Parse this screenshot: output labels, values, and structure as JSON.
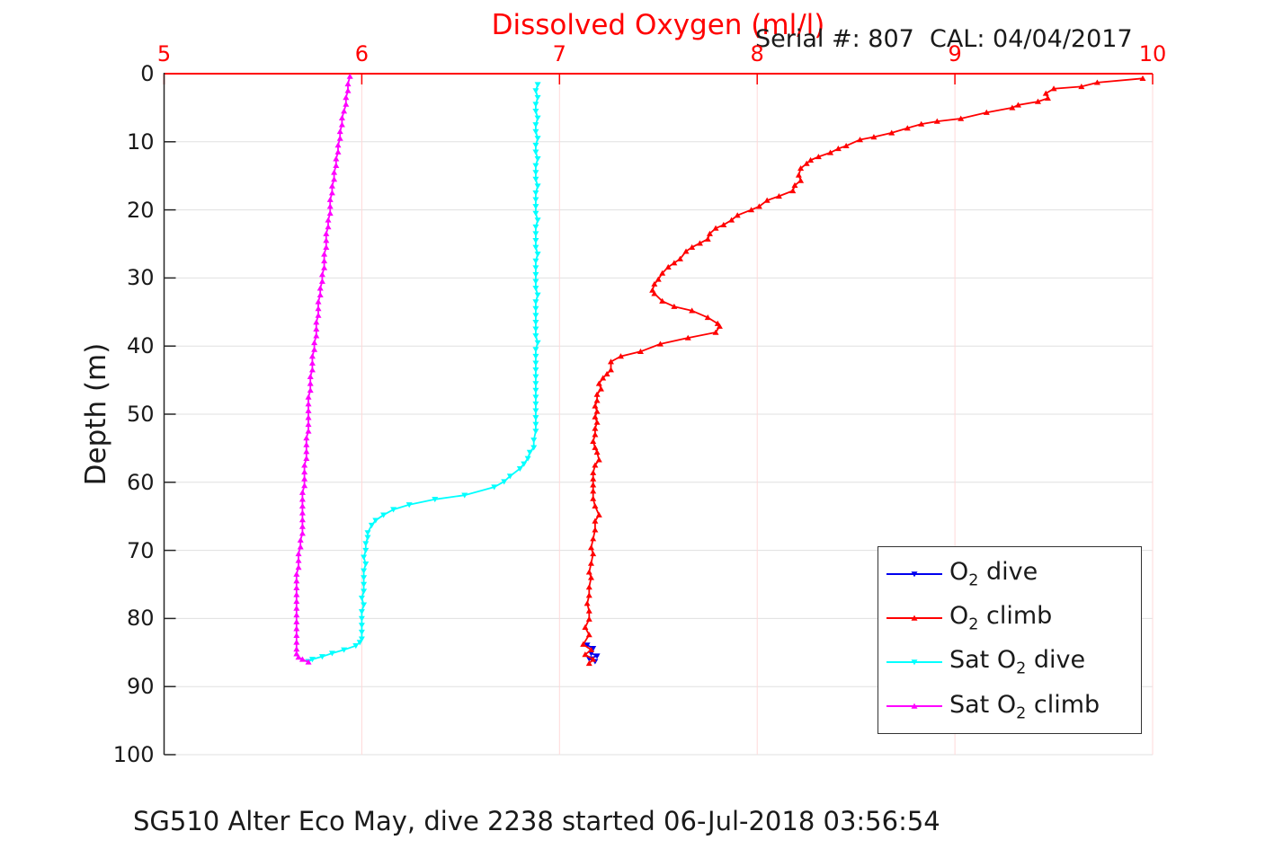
{
  "figure": {
    "title": "Dissolved Oxygen (ml/l)",
    "serial_cal": "Serial #: 807  CAL: 04/04/2017",
    "footer": "SG510 Alter Eco May, dive 2238 started 06-Jul-2018 03:56:54",
    "ylabel": "Depth (m)"
  },
  "colors": {
    "title": "#ff0000",
    "x_axis": "#ff0000",
    "x_tick_labels": "#ff0000",
    "y_axis": "#262626",
    "y_tick_labels": "#1a1a1a",
    "grid_horizontal": "#e0e0e0",
    "grid_vertical": "#ffd9d9",
    "o2_dive": "#0000ee",
    "o2_climb": "#ff0000",
    "sat_o2_dive": "#00ffff",
    "sat_o2_climb": "#ff00ff",
    "legend_border": "#333333"
  },
  "chart_data": {
    "type": "line",
    "title": "Dissolved Oxygen (ml/l)",
    "xlabel": "Dissolved Oxygen (ml/l)",
    "ylabel": "Depth (m)",
    "x_axis_position": "top",
    "y_axis_inverted": true,
    "xlim": [
      5,
      10
    ],
    "ylim": [
      0,
      100
    ],
    "x_ticks": [
      5,
      6,
      7,
      8,
      9,
      10
    ],
    "y_ticks": [
      0,
      10,
      20,
      30,
      40,
      50,
      60,
      70,
      80,
      90,
      100
    ],
    "grid": true,
    "legend_position": "middle-right",
    "point_format": "[dissolved_o2_ml_per_l, depth_m]",
    "series": [
      {
        "id": "o2-dive",
        "label": "O2 dive",
        "label_parts": {
          "pre": "O",
          "sub": "2",
          "post": " dive"
        },
        "color": "#0000ee",
        "marker": "triangle-down",
        "points": [
          [
            7.14,
            83.9
          ],
          [
            7.17,
            84.4
          ],
          [
            7.16,
            85.1
          ],
          [
            7.19,
            85.5
          ],
          [
            7.15,
            85.9
          ],
          [
            7.18,
            86.3
          ]
        ]
      },
      {
        "id": "o2-climb",
        "label": "O2 climb",
        "label_parts": {
          "pre": "O",
          "sub": "2",
          "post": " climb"
        },
        "color": "#ff0000",
        "marker": "triangle-up",
        "points": [
          [
            9.95,
            0.7
          ],
          [
            9.72,
            1.3
          ],
          [
            9.64,
            1.9
          ],
          [
            9.5,
            2.2
          ],
          [
            9.46,
            2.9
          ],
          [
            9.47,
            3.6
          ],
          [
            9.42,
            4.1
          ],
          [
            9.32,
            4.6
          ],
          [
            9.29,
            5.0
          ],
          [
            9.16,
            5.7
          ],
          [
            9.03,
            6.6
          ],
          [
            8.91,
            7.0
          ],
          [
            8.83,
            7.4
          ],
          [
            8.76,
            8.0
          ],
          [
            8.68,
            8.7
          ],
          [
            8.59,
            9.3
          ],
          [
            8.52,
            9.7
          ],
          [
            8.45,
            10.6
          ],
          [
            8.41,
            11.0
          ],
          [
            8.37,
            11.6
          ],
          [
            8.31,
            12.2
          ],
          [
            8.27,
            12.7
          ],
          [
            8.25,
            13.2
          ],
          [
            8.22,
            13.9
          ],
          [
            8.21,
            14.9
          ],
          [
            8.22,
            15.7
          ],
          [
            8.19,
            16.4
          ],
          [
            8.18,
            17.2
          ],
          [
            8.11,
            18.0
          ],
          [
            8.05,
            18.6
          ],
          [
            8.01,
            19.5
          ],
          [
            7.97,
            20.0
          ],
          [
            7.9,
            20.8
          ],
          [
            7.87,
            21.5
          ],
          [
            7.83,
            22.2
          ],
          [
            7.79,
            22.7
          ],
          [
            7.76,
            23.5
          ],
          [
            7.75,
            24.3
          ],
          [
            7.71,
            24.9
          ],
          [
            7.67,
            25.5
          ],
          [
            7.64,
            26.1
          ],
          [
            7.61,
            27.2
          ],
          [
            7.58,
            27.8
          ],
          [
            7.55,
            28.4
          ],
          [
            7.52,
            29.3
          ],
          [
            7.5,
            30.2
          ],
          [
            7.48,
            30.9
          ],
          [
            7.47,
            31.8
          ],
          [
            7.48,
            32.3
          ],
          [
            7.52,
            33.4
          ],
          [
            7.58,
            34.2
          ],
          [
            7.67,
            34.8
          ],
          [
            7.75,
            35.8
          ],
          [
            7.8,
            36.7
          ],
          [
            7.81,
            37.1
          ],
          [
            7.79,
            38.0
          ],
          [
            7.65,
            38.8
          ],
          [
            7.51,
            39.7
          ],
          [
            7.41,
            40.8
          ],
          [
            7.31,
            41.5
          ],
          [
            7.26,
            42.3
          ],
          [
            7.26,
            43.5
          ],
          [
            7.24,
            44.1
          ],
          [
            7.22,
            44.7
          ],
          [
            7.2,
            45.5
          ],
          [
            7.21,
            46.3
          ],
          [
            7.19,
            47.1
          ],
          [
            7.19,
            48.0
          ],
          [
            7.18,
            48.8
          ],
          [
            7.19,
            49.6
          ],
          [
            7.18,
            50.4
          ],
          [
            7.19,
            51.2
          ],
          [
            7.18,
            52.1
          ],
          [
            7.18,
            53.0
          ],
          [
            7.17,
            54.0
          ],
          [
            7.18,
            54.9
          ],
          [
            7.19,
            55.6
          ],
          [
            7.2,
            56.7
          ],
          [
            7.18,
            57.5
          ],
          [
            7.17,
            58.6
          ],
          [
            7.17,
            59.5
          ],
          [
            7.17,
            60.4
          ],
          [
            7.17,
            61.3
          ],
          [
            7.17,
            62.4
          ],
          [
            7.18,
            63.5
          ],
          [
            7.2,
            64.8
          ],
          [
            7.18,
            65.7
          ],
          [
            7.18,
            67.0
          ],
          [
            7.17,
            68.3
          ],
          [
            7.16,
            69.6
          ],
          [
            7.17,
            70.5
          ],
          [
            7.16,
            71.9
          ],
          [
            7.15,
            73.2
          ],
          [
            7.16,
            74.0
          ],
          [
            7.15,
            75.4
          ],
          [
            7.15,
            76.6
          ],
          [
            7.14,
            77.8
          ],
          [
            7.15,
            78.9
          ],
          [
            7.15,
            80.1
          ],
          [
            7.13,
            81.3
          ],
          [
            7.15,
            82.4
          ],
          [
            7.12,
            83.8
          ],
          [
            7.16,
            84.6
          ],
          [
            7.13,
            85.3
          ],
          [
            7.17,
            86.0
          ],
          [
            7.15,
            86.6
          ]
        ]
      },
      {
        "id": "sat-o2-dive",
        "label": "Sat O2 dive",
        "label_parts": {
          "pre": "Sat O",
          "sub": "2",
          "post": " dive"
        },
        "color": "#00ffff",
        "marker": "triangle-down",
        "points": [
          [
            6.89,
            1.6
          ],
          [
            6.88,
            2.5
          ],
          [
            6.89,
            3.5
          ],
          [
            6.88,
            4.5
          ],
          [
            6.88,
            5.5
          ],
          [
            6.89,
            6.5
          ],
          [
            6.88,
            7.5
          ],
          [
            6.88,
            8.5
          ],
          [
            6.89,
            9.5
          ],
          [
            6.88,
            10.5
          ],
          [
            6.88,
            11.5
          ],
          [
            6.89,
            12.5
          ],
          [
            6.88,
            13.5
          ],
          [
            6.88,
            14.5
          ],
          [
            6.88,
            15.5
          ],
          [
            6.89,
            16.5
          ],
          [
            6.88,
            17.5
          ],
          [
            6.88,
            18.5
          ],
          [
            6.88,
            19.5
          ],
          [
            6.88,
            20.5
          ],
          [
            6.89,
            21.5
          ],
          [
            6.88,
            22.5
          ],
          [
            6.88,
            23.5
          ],
          [
            6.88,
            24.5
          ],
          [
            6.88,
            25.5
          ],
          [
            6.89,
            26.5
          ],
          [
            6.88,
            27.5
          ],
          [
            6.88,
            28.5
          ],
          [
            6.88,
            29.5
          ],
          [
            6.88,
            30.5
          ],
          [
            6.88,
            31.5
          ],
          [
            6.89,
            32.5
          ],
          [
            6.88,
            33.5
          ],
          [
            6.88,
            34.5
          ],
          [
            6.88,
            35.5
          ],
          [
            6.88,
            36.5
          ],
          [
            6.88,
            37.5
          ],
          [
            6.88,
            38.5
          ],
          [
            6.89,
            39.5
          ],
          [
            6.88,
            40.5
          ],
          [
            6.88,
            41.5
          ],
          [
            6.88,
            42.5
          ],
          [
            6.88,
            43.5
          ],
          [
            6.88,
            44.5
          ],
          [
            6.88,
            45.5
          ],
          [
            6.88,
            46.5
          ],
          [
            6.88,
            47.5
          ],
          [
            6.88,
            48.5
          ],
          [
            6.88,
            49.5
          ],
          [
            6.88,
            50.5
          ],
          [
            6.88,
            51.5
          ],
          [
            6.88,
            52.5
          ],
          [
            6.87,
            53.8
          ],
          [
            6.87,
            54.9
          ],
          [
            6.85,
            55.6
          ],
          [
            6.84,
            56.5
          ],
          [
            6.82,
            57.3
          ],
          [
            6.8,
            58.0
          ],
          [
            6.75,
            59.1
          ],
          [
            6.72,
            59.9
          ],
          [
            6.67,
            60.7
          ],
          [
            6.52,
            61.9
          ],
          [
            6.37,
            62.5
          ],
          [
            6.24,
            63.3
          ],
          [
            6.16,
            64.0
          ],
          [
            6.11,
            64.8
          ],
          [
            6.07,
            65.6
          ],
          [
            6.05,
            66.3
          ],
          [
            6.03,
            67.4
          ],
          [
            6.03,
            68.1
          ],
          [
            6.02,
            69.0
          ],
          [
            6.02,
            70.0
          ],
          [
            6.01,
            71.0
          ],
          [
            6.02,
            72.0
          ],
          [
            6.01,
            73.0
          ],
          [
            6.01,
            74.0
          ],
          [
            6.01,
            75.0
          ],
          [
            6.01,
            76.0
          ],
          [
            6.0,
            77.0
          ],
          [
            6.01,
            78.0
          ],
          [
            6.0,
            79.0
          ],
          [
            6.0,
            80.0
          ],
          [
            6.0,
            81.0
          ],
          [
            6.0,
            82.0
          ],
          [
            6.0,
            83.0
          ],
          [
            5.99,
            83.5
          ],
          [
            5.97,
            84.0
          ],
          [
            5.91,
            84.6
          ],
          [
            5.85,
            85.1
          ],
          [
            5.8,
            85.6
          ],
          [
            5.75,
            86.0
          ],
          [
            5.73,
            86.3
          ]
        ]
      },
      {
        "id": "sat-o2-climb",
        "label": "Sat O2 climb",
        "label_parts": {
          "pre": "Sat O",
          "sub": "2",
          "post": " climb"
        },
        "color": "#ff00ff",
        "marker": "triangle-up",
        "points": [
          [
            5.94,
            0.4
          ],
          [
            5.93,
            1.5
          ],
          [
            5.93,
            2.5
          ],
          [
            5.92,
            3.5
          ],
          [
            5.92,
            4.5
          ],
          [
            5.91,
            5.5
          ],
          [
            5.9,
            6.5
          ],
          [
            5.9,
            7.5
          ],
          [
            5.89,
            8.5
          ],
          [
            5.89,
            9.5
          ],
          [
            5.88,
            10.5
          ],
          [
            5.88,
            11.5
          ],
          [
            5.87,
            12.5
          ],
          [
            5.87,
            13.5
          ],
          [
            5.86,
            14.5
          ],
          [
            5.86,
            15.5
          ],
          [
            5.85,
            16.5
          ],
          [
            5.85,
            17.5
          ],
          [
            5.84,
            18.5
          ],
          [
            5.84,
            19.5
          ],
          [
            5.84,
            20.5
          ],
          [
            5.83,
            21.5
          ],
          [
            5.83,
            22.5
          ],
          [
            5.82,
            23.5
          ],
          [
            5.82,
            24.5
          ],
          [
            5.82,
            25.5
          ],
          [
            5.81,
            26.5
          ],
          [
            5.81,
            27.5
          ],
          [
            5.81,
            28.5
          ],
          [
            5.8,
            29.5
          ],
          [
            5.8,
            30.5
          ],
          [
            5.79,
            31.5
          ],
          [
            5.79,
            32.5
          ],
          [
            5.78,
            33.5
          ],
          [
            5.78,
            34.5
          ],
          [
            5.78,
            35.5
          ],
          [
            5.77,
            36.5
          ],
          [
            5.77,
            37.5
          ],
          [
            5.77,
            38.5
          ],
          [
            5.76,
            39.5
          ],
          [
            5.76,
            40.5
          ],
          [
            5.75,
            41.5
          ],
          [
            5.75,
            42.5
          ],
          [
            5.75,
            43.5
          ],
          [
            5.74,
            44.5
          ],
          [
            5.74,
            45.5
          ],
          [
            5.74,
            46.5
          ],
          [
            5.73,
            47.5
          ],
          [
            5.73,
            48.5
          ],
          [
            5.73,
            49.5
          ],
          [
            5.73,
            50.5
          ],
          [
            5.73,
            51.5
          ],
          [
            5.73,
            52.5
          ],
          [
            5.72,
            53.5
          ],
          [
            5.72,
            54.5
          ],
          [
            5.72,
            55.5
          ],
          [
            5.72,
            56.5
          ],
          [
            5.71,
            57.5
          ],
          [
            5.71,
            58.5
          ],
          [
            5.71,
            59.5
          ],
          [
            5.71,
            60.5
          ],
          [
            5.7,
            61.5
          ],
          [
            5.7,
            62.5
          ],
          [
            5.7,
            63.5
          ],
          [
            5.7,
            64.5
          ],
          [
            5.7,
            65.5
          ],
          [
            5.7,
            66.5
          ],
          [
            5.7,
            67.5
          ],
          [
            5.69,
            68.5
          ],
          [
            5.69,
            69.5
          ],
          [
            5.68,
            70.5
          ],
          [
            5.68,
            71.5
          ],
          [
            5.68,
            72.5
          ],
          [
            5.67,
            73.5
          ],
          [
            5.67,
            74.5
          ],
          [
            5.67,
            75.5
          ],
          [
            5.67,
            76.5
          ],
          [
            5.67,
            77.5
          ],
          [
            5.67,
            78.5
          ],
          [
            5.67,
            79.5
          ],
          [
            5.67,
            80.5
          ],
          [
            5.67,
            81.5
          ],
          [
            5.67,
            82.5
          ],
          [
            5.67,
            83.5
          ],
          [
            5.67,
            84.5
          ],
          [
            5.67,
            85.2
          ],
          [
            5.68,
            85.7
          ],
          [
            5.7,
            86.0
          ],
          [
            5.73,
            86.4
          ]
        ]
      }
    ]
  }
}
